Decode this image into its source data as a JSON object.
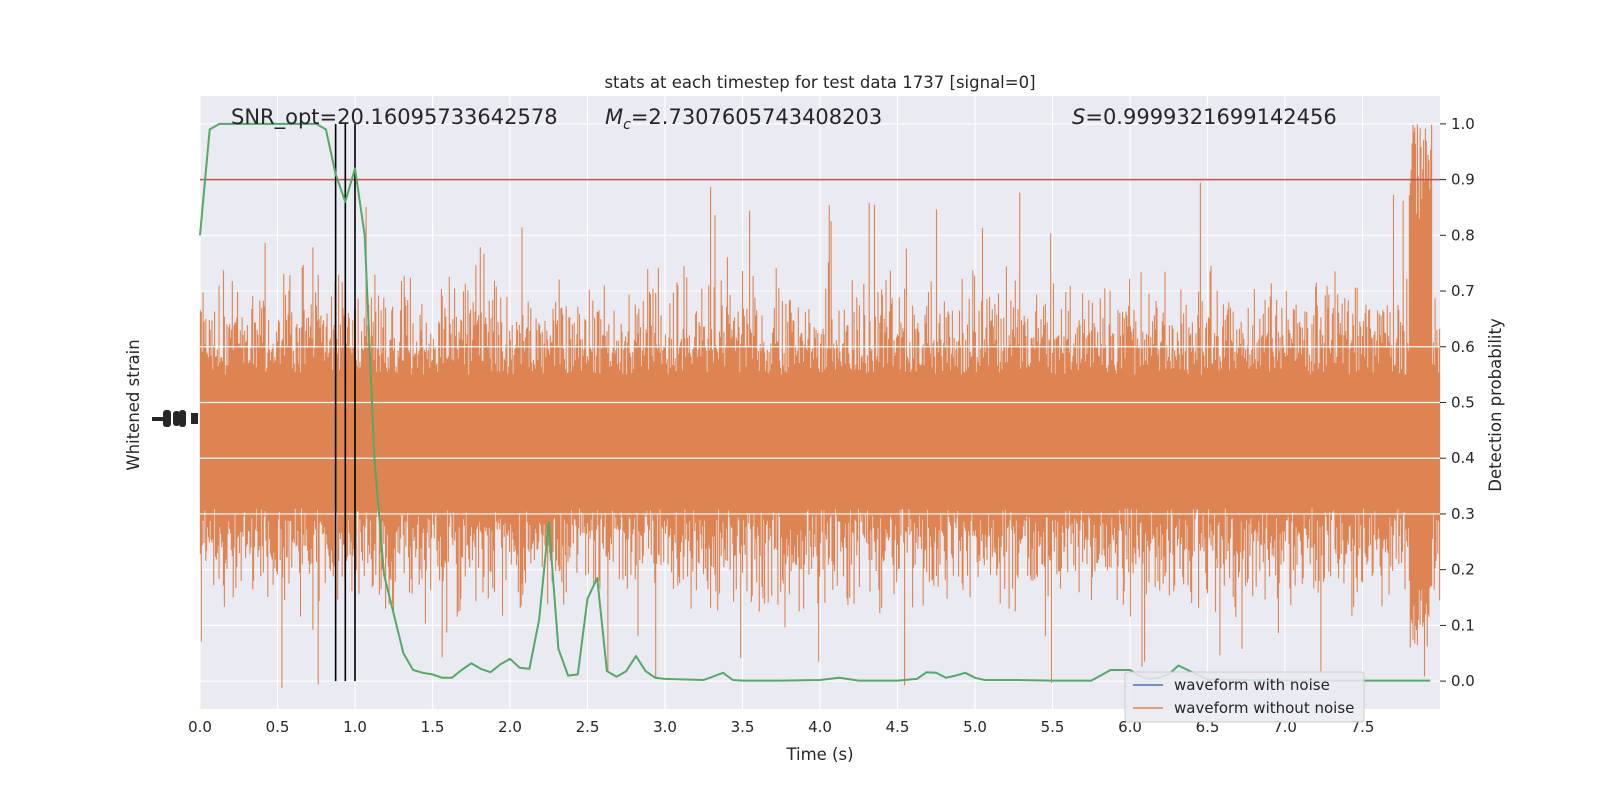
{
  "chart_data": {
    "type": "line",
    "title": "stats at each timestep for test data 1737 [signal=0]",
    "xlabel": "Time (s)",
    "ylabel_left": "Whitened strain",
    "ylabel_right": "Detection probability",
    "xlim": [
      0,
      8
    ],
    "ylim_right": [
      -0.05,
      1.05
    ],
    "x_ticks": [
      "0.0",
      "0.5",
      "1.0",
      "1.5",
      "2.0",
      "2.5",
      "3.0",
      "3.5",
      "4.0",
      "4.5",
      "5.0",
      "5.5",
      "6.0",
      "6.5",
      "7.0",
      "7.5"
    ],
    "y_ticks_right": [
      "0.0",
      "0.1",
      "0.2",
      "0.3",
      "0.4",
      "0.5",
      "0.6",
      "0.7",
      "0.8",
      "0.9",
      "1.0"
    ],
    "annotations": {
      "snr": "SNR_opt=20.16095733642578",
      "mc_symbol": "M",
      "mc_sub": "c",
      "mc_value": "=2.7307605743408203",
      "s_symbol": "S",
      "s_value": "=0.9999321699142456"
    },
    "threshold": 0.9,
    "vertical_lines": [
      0.875,
      0.9375,
      1.0
    ],
    "series": [
      {
        "name": "waveform with noise",
        "color": "#4c72b0"
      },
      {
        "name": "waveform without noise",
        "color": "#dd8452"
      }
    ],
    "noise_band": {
      "center": 0.43,
      "core_half_width": 0.12,
      "typical_peak": 0.33,
      "max_peak": 0.5
    },
    "detection_probability": {
      "color": "#55a868",
      "x": [
        0.0,
        0.0625,
        0.125,
        0.1875,
        0.25,
        0.3125,
        0.375,
        0.4375,
        0.5,
        0.5625,
        0.625,
        0.6875,
        0.75,
        0.8125,
        0.875,
        0.9375,
        1.0,
        1.0625,
        1.125,
        1.1875,
        1.25,
        1.3125,
        1.375,
        1.4375,
        1.5,
        1.5625,
        1.625,
        1.6875,
        1.75,
        1.8125,
        1.875,
        1.9375,
        2.0,
        2.0625,
        2.125,
        2.1875,
        2.25,
        2.3125,
        2.375,
        2.4375,
        2.5,
        2.5625,
        2.625,
        2.6875,
        2.75,
        2.8125,
        2.875,
        2.9375,
        3.0,
        3.125,
        3.25,
        3.375,
        3.4375,
        3.5,
        3.75,
        4.0,
        4.125,
        4.25,
        4.5,
        4.625,
        4.6875,
        4.75,
        4.8125,
        4.875,
        4.9375,
        5.0,
        5.0625,
        5.25,
        5.5,
        5.75,
        5.875,
        6.0,
        6.0625,
        6.125,
        6.1875,
        6.25,
        6.3125,
        6.5,
        7.0,
        7.5,
        7.9375
      ],
      "y": [
        0.8,
        0.99,
        1.0,
        1.0,
        1.0,
        1.0,
        1.0,
        1.0,
        1.0,
        1.0,
        1.0,
        1.0,
        1.0,
        0.99,
        0.91,
        0.86,
        0.92,
        0.8,
        0.4,
        0.19,
        0.12,
        0.05,
        0.02,
        0.015,
        0.012,
        0.006,
        0.006,
        0.02,
        0.032,
        0.022,
        0.016,
        0.03,
        0.04,
        0.024,
        0.022,
        0.11,
        0.285,
        0.058,
        0.01,
        0.012,
        0.148,
        0.185,
        0.018,
        0.008,
        0.018,
        0.045,
        0.018,
        0.006,
        0.004,
        0.003,
        0.002,
        0.015,
        0.002,
        0.001,
        0.001,
        0.002,
        0.006,
        0.001,
        0.001,
        0.004,
        0.016,
        0.015,
        0.006,
        0.01,
        0.015,
        0.006,
        0.002,
        0.002,
        0.001,
        0.001,
        0.02,
        0.02,
        0.009,
        0.004,
        0.006,
        0.012,
        0.028,
        0.003,
        0.001,
        0.001,
        0.001
      ]
    }
  }
}
